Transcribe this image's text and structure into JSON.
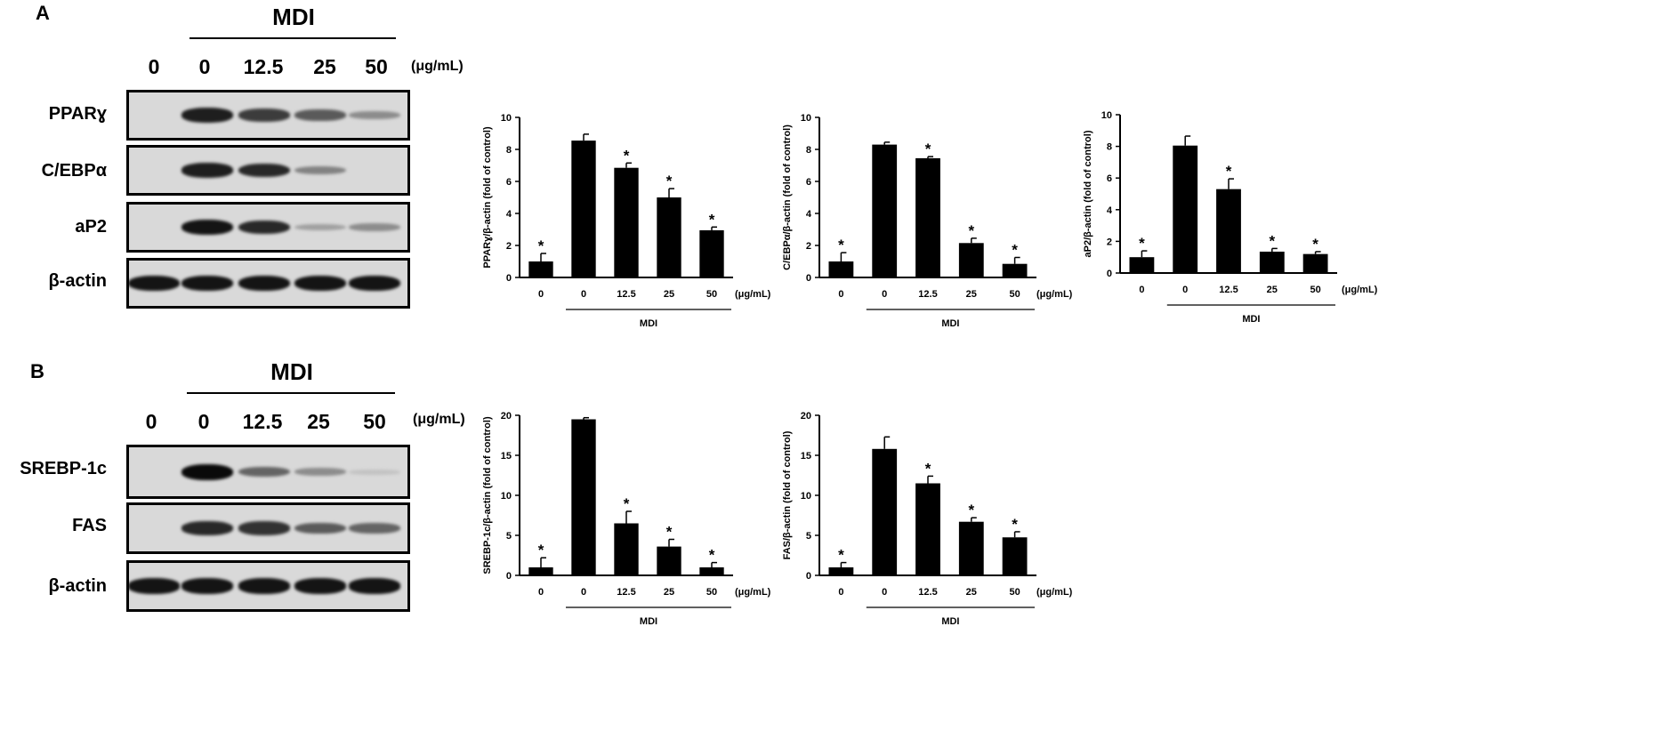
{
  "panels": {
    "A": {
      "letter": "A",
      "mdi": "MDI",
      "doses": [
        "0",
        "0",
        "12.5",
        "25",
        "50"
      ],
      "unit": "(μg/mL)",
      "rows": [
        {
          "label": "PPARɣ",
          "intensity": [
            0,
            0.9,
            0.75,
            0.6,
            0.35
          ]
        },
        {
          "label": "C/EBPα",
          "intensity": [
            0,
            0.9,
            0.85,
            0.4,
            0
          ]
        },
        {
          "label": "aP2",
          "intensity": [
            0,
            0.95,
            0.85,
            0.25,
            0.35
          ]
        },
        {
          "label": "β-actin",
          "intensity": [
            0.95,
            0.95,
            0.95,
            0.95,
            0.95
          ]
        }
      ]
    },
    "B": {
      "letter": "B",
      "mdi": "MDI",
      "doses": [
        "0",
        "0",
        "12.5",
        "25",
        "50"
      ],
      "unit": "(μg/mL)",
      "rows": [
        {
          "label": "SREBP-1c",
          "intensity": [
            0,
            1.0,
            0.55,
            0.35,
            0.08
          ]
        },
        {
          "label": "FAS",
          "intensity": [
            0,
            0.85,
            0.8,
            0.6,
            0.55
          ]
        },
        {
          "label": "β-actin",
          "intensity": [
            0.95,
            0.95,
            0.95,
            0.95,
            0.95
          ]
        }
      ]
    }
  },
  "chart_data": [
    {
      "type": "bar",
      "categories": [
        "0",
        "0",
        "12.5",
        "25",
        "50"
      ],
      "values": [
        1.0,
        8.55,
        6.85,
        5.0,
        2.95
      ],
      "errors": [
        0.5,
        0.4,
        0.3,
        0.55,
        0.2
      ],
      "significant": [
        true,
        false,
        true,
        true,
        true
      ],
      "ylabel": "PPARɣ/β-actin (fold of control)",
      "yticks": [
        "0",
        "2",
        "4",
        "6",
        "8",
        "10"
      ],
      "ylim": [
        0,
        10
      ],
      "unit": "(μg/mL)",
      "group_label": "MDI",
      "star": "*"
    },
    {
      "type": "bar",
      "categories": [
        "0",
        "0",
        "12.5",
        "25",
        "50"
      ],
      "values": [
        1.0,
        8.3,
        7.45,
        2.15,
        0.85
      ],
      "errors": [
        0.55,
        0.15,
        0.1,
        0.3,
        0.4
      ],
      "significant": [
        true,
        false,
        true,
        true,
        true
      ],
      "ylabel": "C/EBPα/β-actin (fold of control)",
      "yticks": [
        "0",
        "2",
        "4",
        "6",
        "8",
        "10"
      ],
      "ylim": [
        0,
        10
      ],
      "unit": "(μg/mL)",
      "group_label": "MDI",
      "star": "*"
    },
    {
      "type": "bar",
      "categories": [
        "0",
        "0",
        "12.5",
        "25",
        "50"
      ],
      "values": [
        1.0,
        8.05,
        5.3,
        1.35,
        1.2
      ],
      "errors": [
        0.4,
        0.6,
        0.65,
        0.2,
        0.15
      ],
      "significant": [
        true,
        false,
        true,
        true,
        true
      ],
      "ylabel": "aP2/β-actin (fold of control)",
      "yticks": [
        "0",
        "2",
        "4",
        "6",
        "8",
        "10"
      ],
      "ylim": [
        0,
        10
      ],
      "unit": "(μg/mL)",
      "group_label": "MDI",
      "star": "*"
    },
    {
      "type": "bar",
      "categories": [
        "0",
        "0",
        "12.5",
        "25",
        "50"
      ],
      "values": [
        1.0,
        19.5,
        6.5,
        3.6,
        1.0
      ],
      "errors": [
        1.2,
        0.2,
        1.5,
        0.9,
        0.6
      ],
      "significant": [
        true,
        false,
        true,
        true,
        true
      ],
      "ylabel": "SREBP-1c/β-actin (fold of control)",
      "yticks": [
        "0",
        "5",
        "10",
        "15",
        "20"
      ],
      "ylim": [
        0,
        20
      ],
      "unit": "(μg/mL)",
      "group_label": "MDI",
      "star": "*"
    },
    {
      "type": "bar",
      "categories": [
        "0",
        "0",
        "12.5",
        "25",
        "50"
      ],
      "values": [
        1.0,
        15.8,
        11.5,
        6.7,
        4.75
      ],
      "errors": [
        0.6,
        1.5,
        0.9,
        0.5,
        0.7
      ],
      "significant": [
        true,
        false,
        true,
        true,
        true
      ],
      "ylabel": "FAS/β-actin (fold of control)",
      "yticks": [
        "0",
        "5",
        "10",
        "15",
        "20"
      ],
      "ylim": [
        0,
        20
      ],
      "unit": "(μg/mL)",
      "group_label": "MDI",
      "star": "*"
    }
  ]
}
